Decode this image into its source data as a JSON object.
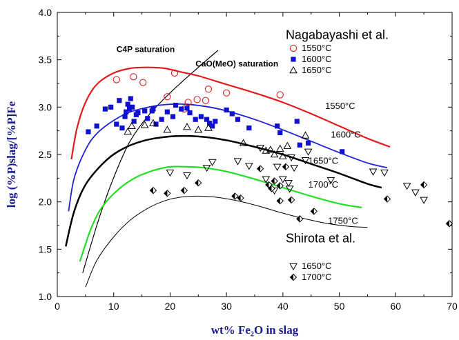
{
  "chart_data": {
    "type": "scatter",
    "xlabel": "wt% Fe₂O in slag",
    "ylabel": "log (%P)slag/[%P]Fe",
    "xlim": [
      0,
      70
    ],
    "ylim": [
      1.0,
      4.0
    ],
    "xticks": [
      0,
      10,
      20,
      30,
      40,
      50,
      60,
      70
    ],
    "yticks": [
      1.0,
      1.5,
      2.0,
      2.5,
      3.0,
      3.5,
      4.0
    ],
    "grid": false,
    "annotations": [
      {
        "id": "nagabayashi",
        "text": "Nagabayashi et al.",
        "x": 40.5,
        "y": 3.72,
        "size": 18,
        "weight": "normal"
      },
      {
        "id": "shirota",
        "text": "Shirota et al.",
        "x": 40.5,
        "y": 1.57,
        "size": 18,
        "weight": "normal"
      },
      {
        "id": "c4p",
        "text": "C4P saturation",
        "x": 10.5,
        "y": 3.58,
        "size": 12,
        "weight": "bold"
      },
      {
        "id": "cao",
        "text": "CaO(MeO) saturation",
        "x": 24.5,
        "y": 3.43,
        "size": 12,
        "weight": "bold"
      },
      {
        "id": "l1550",
        "text": "1550°C",
        "x": 47.5,
        "y": 2.98,
        "size": 13,
        "weight": "normal"
      },
      {
        "id": "l1600",
        "text": "1600°C",
        "x": 48.5,
        "y": 2.68,
        "size": 13,
        "weight": "normal"
      },
      {
        "id": "l1650",
        "text": "1650°C",
        "x": 44.5,
        "y": 2.4,
        "size": 13,
        "weight": "normal"
      },
      {
        "id": "l1700",
        "text": "1700°C",
        "x": 44.5,
        "y": 2.15,
        "size": 13,
        "weight": "normal"
      },
      {
        "id": "l1750",
        "text": "1750°C",
        "x": 48.0,
        "y": 1.77,
        "size": 13,
        "weight": "normal"
      }
    ],
    "legend_groups": [
      {
        "location": "upper-right",
        "entries": [
          {
            "label": "1550°C",
            "series": "n1550"
          },
          {
            "label": "1600°C",
            "series": "n1600"
          },
          {
            "label": "1650°C",
            "series": "n1650"
          }
        ]
      },
      {
        "location": "lower-right",
        "entries": [
          {
            "label": "1650°C",
            "series": "s1650"
          },
          {
            "label": "1700°C",
            "series": "s1700"
          }
        ]
      }
    ],
    "lines": [
      {
        "id": "c4p-saturation",
        "color": "#000000",
        "width": 1.2,
        "x": [
          4.5,
          7,
          9,
          11,
          13,
          16,
          20,
          25,
          28.5
        ],
        "y": [
          1.25,
          1.75,
          2.1,
          2.4,
          2.65,
          2.9,
          3.15,
          3.42,
          3.6
        ]
      },
      {
        "id": "curve-1550",
        "color": "#e31a1c",
        "width": 2.2,
        "x": [
          2.5,
          3.5,
          5,
          7,
          10,
          13,
          16,
          19,
          22,
          25,
          30,
          35,
          40,
          45,
          50,
          55,
          59
        ],
        "y": [
          2.45,
          2.78,
          3.05,
          3.24,
          3.36,
          3.41,
          3.42,
          3.41,
          3.37,
          3.33,
          3.24,
          3.15,
          3.05,
          2.93,
          2.8,
          2.67,
          2.58
        ]
      },
      {
        "id": "curve-1600",
        "color": "#1f1fd6",
        "width": 1.8,
        "x": [
          2,
          3,
          5,
          7,
          10,
          13,
          17,
          20,
          23,
          27,
          30,
          35,
          40,
          45,
          50,
          55,
          58.5
        ],
        "y": [
          1.9,
          2.25,
          2.55,
          2.72,
          2.86,
          2.95,
          3.01,
          3.03,
          3.03,
          3.0,
          2.96,
          2.87,
          2.76,
          2.64,
          2.52,
          2.41,
          2.36
        ]
      },
      {
        "id": "curve-1650",
        "color": "#000000",
        "width": 2.5,
        "x": [
          1.5,
          3,
          5,
          8,
          11,
          15,
          20,
          25,
          30,
          35,
          40,
          45,
          50,
          55,
          57.5
        ],
        "y": [
          1.53,
          1.9,
          2.18,
          2.4,
          2.54,
          2.64,
          2.69,
          2.69,
          2.65,
          2.58,
          2.5,
          2.4,
          2.3,
          2.19,
          2.15
        ]
      },
      {
        "id": "curve-1700",
        "color": "#22e022",
        "width": 2.2,
        "x": [
          4,
          6,
          8,
          11,
          14,
          17,
          20,
          23,
          26,
          30,
          35,
          40,
          45,
          50,
          54
        ],
        "y": [
          1.37,
          1.72,
          1.95,
          2.14,
          2.26,
          2.33,
          2.37,
          2.37,
          2.36,
          2.32,
          2.24,
          2.15,
          2.06,
          1.98,
          1.94
        ]
      },
      {
        "id": "curve-1750",
        "color": "#000000",
        "width": 1.0,
        "x": [
          5,
          7,
          10,
          13,
          16,
          19,
          22,
          25,
          28,
          32,
          36,
          40,
          44,
          48,
          52,
          55
        ],
        "y": [
          1.1,
          1.38,
          1.63,
          1.81,
          1.93,
          2.01,
          2.05,
          2.06,
          2.05,
          2.01,
          1.95,
          1.88,
          1.82,
          1.77,
          1.74,
          1.73
        ]
      }
    ],
    "series": [
      {
        "id": "n1550",
        "marker": "circle-open",
        "color": "#e31a1c",
        "points": [
          [
            10.5,
            3.29
          ],
          [
            13.5,
            3.32
          ],
          [
            15.2,
            3.26
          ],
          [
            19.5,
            3.11
          ],
          [
            20.8,
            3.36
          ],
          [
            22.5,
            2.98
          ],
          [
            23.2,
            3.05
          ],
          [
            24.8,
            3.08
          ],
          [
            26.3,
            3.07
          ],
          [
            26.8,
            3.19
          ],
          [
            30,
            3.15
          ],
          [
            39.5,
            3.13
          ]
        ]
      },
      {
        "id": "n1600",
        "marker": "square-filled",
        "color": "#1010d0",
        "points": [
          [
            5.5,
            2.74
          ],
          [
            7,
            2.8
          ],
          [
            8.5,
            2.98
          ],
          [
            9.5,
            3.0
          ],
          [
            10.5,
            2.82
          ],
          [
            11,
            3.07
          ],
          [
            11.5,
            2.78
          ],
          [
            12,
            2.9
          ],
          [
            12.2,
            2.95
          ],
          [
            12.5,
            3.03
          ],
          [
            12.8,
            2.98
          ],
          [
            13,
            3.09
          ],
          [
            13.3,
            3.0
          ],
          [
            13.6,
            2.85
          ],
          [
            14,
            2.92
          ],
          [
            14.3,
            2.94
          ],
          [
            15.5,
            2.96
          ],
          [
            16,
            2.88
          ],
          [
            16.8,
            2.96
          ],
          [
            17,
            2.98
          ],
          [
            17.5,
            2.82
          ],
          [
            18.5,
            2.87
          ],
          [
            19.5,
            2.95
          ],
          [
            20.5,
            2.9
          ],
          [
            21,
            3.02
          ],
          [
            22,
            2.98
          ],
          [
            23,
            2.99
          ],
          [
            23.5,
            2.94
          ],
          [
            24.5,
            2.87
          ],
          [
            25.5,
            2.9
          ],
          [
            26.5,
            2.87
          ],
          [
            27,
            2.83
          ],
          [
            27.5,
            2.8
          ],
          [
            28,
            2.85
          ],
          [
            30,
            2.97
          ],
          [
            31,
            2.93
          ],
          [
            32,
            2.87
          ],
          [
            34,
            2.78
          ],
          [
            39,
            2.8
          ],
          [
            39.5,
            2.73
          ],
          [
            42.5,
            2.85
          ],
          [
            43,
            2.6
          ],
          [
            44.5,
            2.62
          ],
          [
            50.5,
            2.53
          ]
        ]
      },
      {
        "id": "n1650",
        "marker": "triangle-up-open",
        "color": "#000000",
        "points": [
          [
            12.5,
            2.74
          ],
          [
            13.2,
            2.8
          ],
          [
            15.5,
            2.81
          ],
          [
            17,
            2.83
          ],
          [
            19.5,
            2.76
          ],
          [
            23,
            2.79
          ],
          [
            25,
            2.76
          ],
          [
            26.8,
            2.78
          ],
          [
            33,
            2.62
          ],
          [
            37,
            2.54
          ],
          [
            37.8,
            2.55
          ],
          [
            38.5,
            2.5
          ],
          [
            39.5,
            2.56
          ],
          [
            40,
            2.48
          ],
          [
            40.8,
            2.59
          ],
          [
            44,
            2.7
          ]
        ]
      },
      {
        "id": "s1650",
        "marker": "triangle-down-open",
        "color": "#000000",
        "points": [
          [
            20,
            2.31
          ],
          [
            23,
            2.28
          ],
          [
            26.5,
            2.36
          ],
          [
            27.5,
            2.42
          ],
          [
            32,
            2.43
          ],
          [
            34,
            2.38
          ],
          [
            36,
            2.57
          ],
          [
            37,
            2.24
          ],
          [
            38.5,
            2.12
          ],
          [
            39,
            2.37
          ],
          [
            40,
            2.24
          ],
          [
            41,
            2.2
          ],
          [
            41.2,
            2.14
          ],
          [
            41.5,
            2.47
          ],
          [
            42,
            2.36
          ],
          [
            44,
            2.44
          ],
          [
            44.5,
            2.53
          ],
          [
            48.5,
            2.23
          ],
          [
            56,
            2.32
          ],
          [
            58,
            2.31
          ],
          [
            62,
            2.17
          ],
          [
            63.5,
            2.1
          ],
          [
            65,
            2.02
          ]
        ]
      },
      {
        "id": "s1700",
        "marker": "diamond-filled",
        "color": "#000000",
        "points": [
          [
            17,
            2.12
          ],
          [
            19.5,
            2.09
          ],
          [
            22.5,
            2.12
          ],
          [
            25,
            2.2
          ],
          [
            31.5,
            2.06
          ],
          [
            32.5,
            2.04
          ],
          [
            36,
            2.35
          ],
          [
            37.5,
            2.18
          ],
          [
            38,
            2.14
          ],
          [
            38.5,
            2.22
          ],
          [
            39.5,
            2.17
          ],
          [
            39.5,
            2.01
          ],
          [
            40.5,
            2.37
          ],
          [
            41.5,
            2.02
          ],
          [
            43,
            1.82
          ],
          [
            45.5,
            1.9
          ],
          [
            58.5,
            2.03
          ],
          [
            65,
            2.18
          ],
          [
            69.5,
            1.77
          ]
        ]
      }
    ]
  }
}
